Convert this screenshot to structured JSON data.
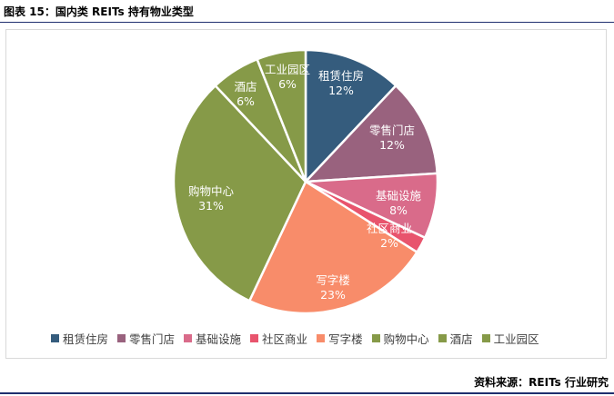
{
  "figure": {
    "title": "图表 15：国内类 REITs 持有物业类型",
    "source": "资料来源：REITs 行业研究"
  },
  "chart_data": {
    "type": "pie",
    "title": "",
    "slices": [
      {
        "name": "租赁住房",
        "value": 12,
        "label": "12%",
        "color": "#355C7D"
      },
      {
        "name": "零售门店",
        "value": 12,
        "label": "12%",
        "color": "#99627E"
      },
      {
        "name": "基础设施",
        "value": 8,
        "label": "8%",
        "color": "#D96B8A"
      },
      {
        "name": "社区商业",
        "value": 2,
        "label": "2%",
        "color": "#E8546D"
      },
      {
        "name": "写字楼",
        "value": 23,
        "label": "23%",
        "color": "#F88C6A"
      },
      {
        "name": "购物中心",
        "value": 31,
        "label": "31%",
        "color": "#869A48"
      },
      {
        "name": "酒店",
        "value": 6,
        "label": "6%",
        "color": "#869A48"
      },
      {
        "name": "工业园区",
        "value": 6,
        "label": "6%",
        "color": "#869A48"
      }
    ],
    "legend_position": "bottom",
    "start_angle": "12 o'clock",
    "direction": "clockwise"
  }
}
